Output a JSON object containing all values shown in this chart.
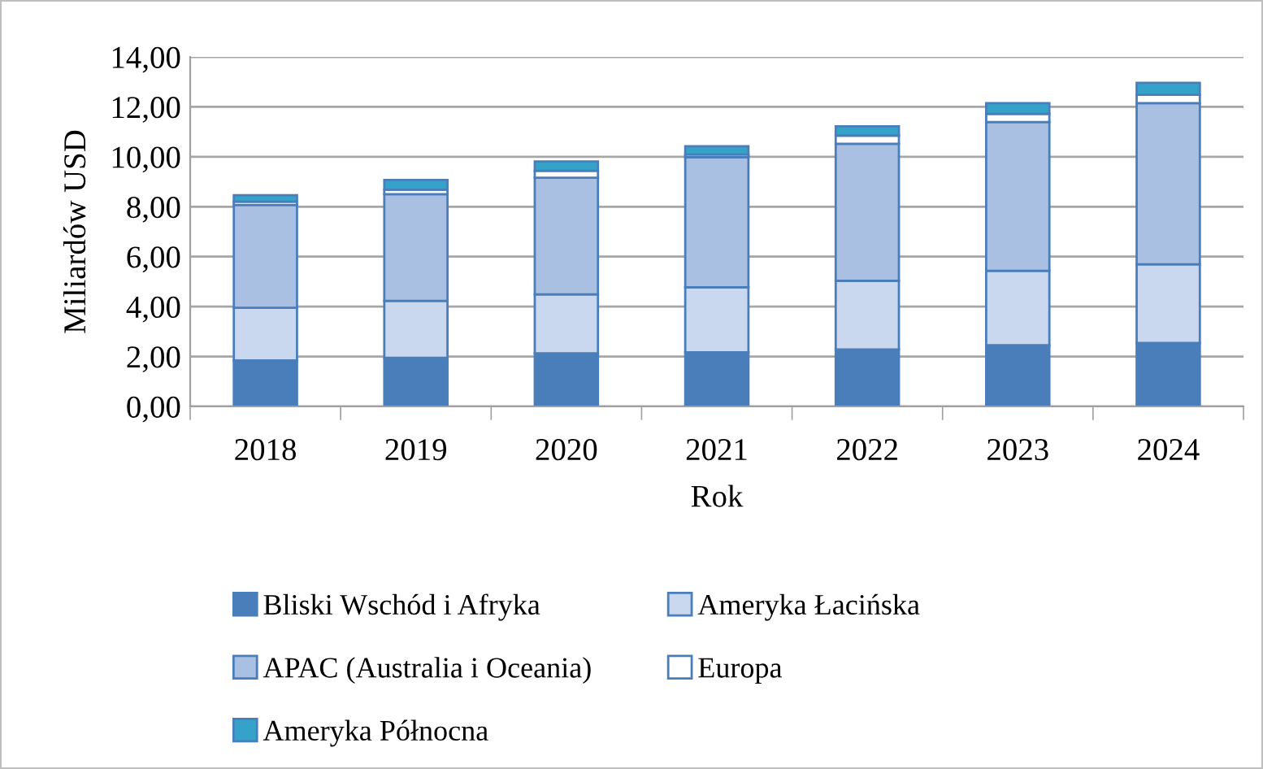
{
  "chart_data": {
    "type": "bar",
    "stacked": true,
    "xlabel": "Rok",
    "ylabel": "Miliardów USD",
    "categories": [
      "2018",
      "2019",
      "2020",
      "2021",
      "2022",
      "2023",
      "2024"
    ],
    "series": [
      {
        "name": "Bliski Wschód i Afryka",
        "color": "#4a7ebb",
        "values": [
          1.84,
          1.95,
          2.13,
          2.17,
          2.28,
          2.45,
          2.54
        ]
      },
      {
        "name": "Ameryka Łacińska",
        "color": "#c9d8ef",
        "values": [
          2.11,
          2.28,
          2.36,
          2.6,
          2.75,
          2.98,
          3.15
        ]
      },
      {
        "name": "APAC (Australia i Oceania)",
        "color": "#a9c0e2",
        "values": [
          4.12,
          4.27,
          4.67,
          5.21,
          5.49,
          5.96,
          6.46
        ]
      },
      {
        "name": "Europa",
        "color": "#ffffff",
        "values": [
          0.13,
          0.18,
          0.28,
          0.11,
          0.33,
          0.33,
          0.33
        ]
      },
      {
        "name": "Ameryka Północna",
        "color": "#35a3c9",
        "values": [
          0.26,
          0.39,
          0.37,
          0.33,
          0.37,
          0.43,
          0.48
        ]
      }
    ],
    "ylim": [
      0,
      14
    ],
    "yticks": [
      {
        "value": 0,
        "label": "0,00"
      },
      {
        "value": 2,
        "label": "2,00"
      },
      {
        "value": 4,
        "label": "4,00"
      },
      {
        "value": 6,
        "label": "6,00"
      },
      {
        "value": 8,
        "label": "8,00"
      },
      {
        "value": 10,
        "label": "10,00"
      },
      {
        "value": 12,
        "label": "12,00"
      },
      {
        "value": 14,
        "label": "14,00"
      }
    ],
    "grid": "y",
    "legend": "bottom"
  }
}
